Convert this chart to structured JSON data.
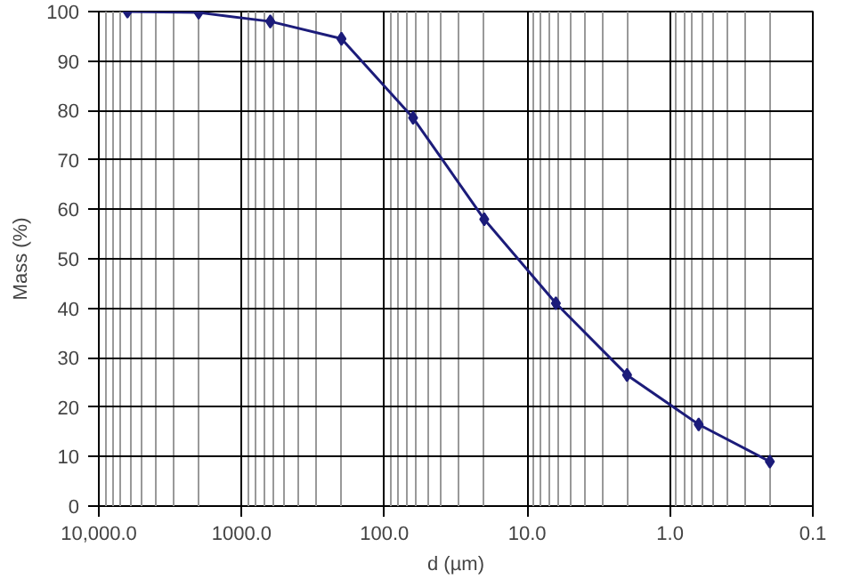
{
  "chart_data": {
    "type": "line",
    "xlabel": "d (µm)",
    "ylabel": "Mass (%)",
    "log": "x",
    "grid": true,
    "marker": "diamond",
    "line_style": "solid",
    "x": [
      6300,
      2000,
      630,
      200,
      63,
      20,
      6.3,
      2,
      0.63,
      0.2
    ],
    "series": [
      {
        "color": "#1c1c7a",
        "values": [
          100,
          99.8,
          98,
          94.5,
          78.5,
          58,
          41,
          26.5,
          16.5,
          9
        ]
      }
    ],
    "xlim": [
      10000,
      0.1
    ],
    "xticks": [
      {
        "value": 10000,
        "label": "10,000.0"
      },
      {
        "value": 1000,
        "label": "1000.0"
      },
      {
        "value": 100,
        "label": "100.0"
      },
      {
        "value": 10,
        "label": "10.0"
      },
      {
        "value": 1,
        "label": "1.0"
      },
      {
        "value": 0.1,
        "label": "0.1"
      }
    ],
    "ylim": [
      0,
      100
    ],
    "yticks": [
      0,
      10,
      20,
      30,
      40,
      50,
      60,
      70,
      80,
      90,
      100
    ]
  }
}
